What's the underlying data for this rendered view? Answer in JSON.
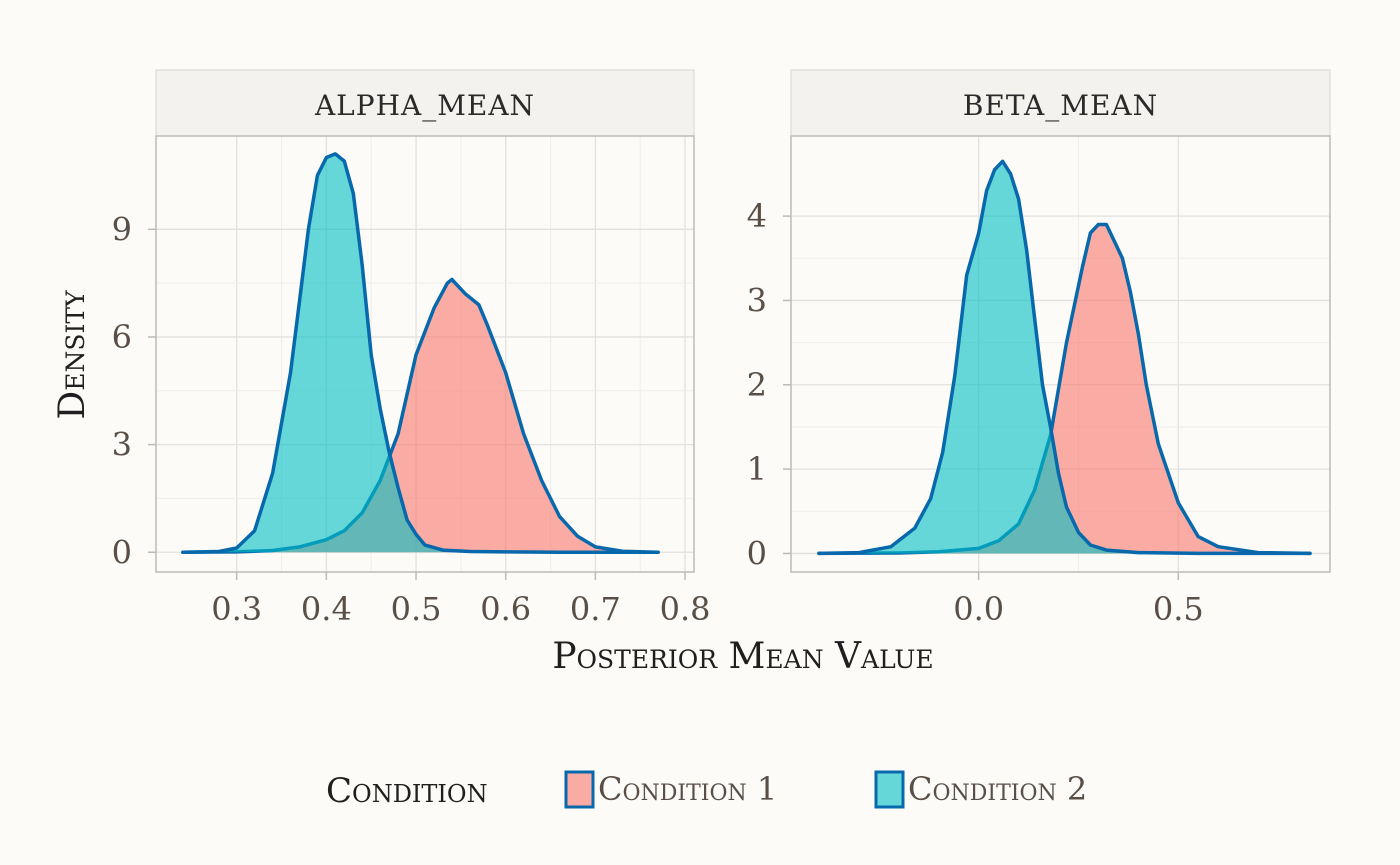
{
  "chart_data": {
    "type": "area",
    "xlabel": "Posterior Mean Value",
    "ylabel": "Density",
    "legend": {
      "title": "Condition",
      "position": "bottom",
      "entries": [
        {
          "label": "Condition 1",
          "fill": "#f8766d"
        },
        {
          "label": "Condition 2",
          "fill": "#00bfc4"
        }
      ]
    },
    "colors": {
      "outline": "#0868ac",
      "condition_1": "#f8766d",
      "condition_2": "#00bfc4"
    },
    "grid": true,
    "panels": [
      {
        "title": "ALPHA_MEAN",
        "xlim": [
          0.21,
          0.81
        ],
        "ylim": [
          -0.55,
          11.6
        ],
        "xticks": [
          0.3,
          0.4,
          0.5,
          0.6,
          0.7,
          0.8
        ],
        "xtick_labels": [
          "0.3",
          "0.4",
          "0.5",
          "0.6",
          "0.7",
          "0.8"
        ],
        "yticks": [
          0,
          3,
          6,
          9
        ],
        "ytick_labels": [
          "0",
          "3",
          "6",
          "9"
        ],
        "series": [
          {
            "name": "Condition 1",
            "x": [
              0.24,
              0.3,
              0.34,
              0.37,
              0.4,
              0.42,
              0.44,
              0.46,
              0.48,
              0.5,
              0.52,
              0.535,
              0.54,
              0.555,
              0.57,
              0.58,
              0.6,
              0.62,
              0.64,
              0.66,
              0.68,
              0.7,
              0.73,
              0.77
            ],
            "y": [
              0,
              0.01,
              0.05,
              0.15,
              0.35,
              0.6,
              1.1,
              2.0,
              3.3,
              5.5,
              6.8,
              7.5,
              7.6,
              7.2,
              6.9,
              6.3,
              5.0,
              3.3,
              2.0,
              1.0,
              0.45,
              0.15,
              0.03,
              0
            ]
          },
          {
            "name": "Condition 2",
            "x": [
              0.24,
              0.28,
              0.3,
              0.32,
              0.34,
              0.36,
              0.37,
              0.38,
              0.39,
              0.4,
              0.41,
              0.42,
              0.43,
              0.44,
              0.45,
              0.46,
              0.47,
              0.48,
              0.49,
              0.5,
              0.51,
              0.53,
              0.56,
              0.6,
              0.66,
              0.77
            ],
            "y": [
              0,
              0.02,
              0.12,
              0.6,
              2.2,
              5.0,
              7.0,
              9.0,
              10.5,
              11.0,
              11.1,
              10.9,
              10.0,
              8.0,
              5.5,
              4.0,
              2.8,
              1.8,
              0.9,
              0.5,
              0.2,
              0.06,
              0.02,
              0.01,
              0,
              0
            ]
          }
        ]
      },
      {
        "title": "BETA_MEAN",
        "xlim": [
          -0.47,
          0.88
        ],
        "ylim": [
          -0.22,
          4.95
        ],
        "xticks": [
          0.0,
          0.5
        ],
        "xtick_labels": [
          "0.0",
          "0.5"
        ],
        "yticks": [
          0,
          1,
          2,
          3,
          4
        ],
        "ytick_labels": [
          "0",
          "1",
          "2",
          "3",
          "4"
        ],
        "series": [
          {
            "name": "Condition 1",
            "x": [
              -0.4,
              -0.2,
              -0.1,
              0.0,
              0.05,
              0.1,
              0.14,
              0.18,
              0.2,
              0.22,
              0.24,
              0.26,
              0.28,
              0.3,
              0.32,
              0.34,
              0.36,
              0.38,
              0.4,
              0.42,
              0.45,
              0.5,
              0.55,
              0.6,
              0.7,
              0.83
            ],
            "y": [
              0,
              0.005,
              0.02,
              0.06,
              0.15,
              0.35,
              0.75,
              1.4,
              1.95,
              2.5,
              2.95,
              3.4,
              3.8,
              3.9,
              3.9,
              3.7,
              3.5,
              3.1,
              2.6,
              2.0,
              1.3,
              0.6,
              0.2,
              0.08,
              0.01,
              0
            ]
          },
          {
            "name": "Condition 2",
            "x": [
              -0.4,
              -0.3,
              -0.22,
              -0.16,
              -0.12,
              -0.09,
              -0.06,
              -0.03,
              0.0,
              0.02,
              0.04,
              0.06,
              0.08,
              0.1,
              0.12,
              0.14,
              0.16,
              0.18,
              0.2,
              0.22,
              0.25,
              0.28,
              0.32,
              0.4,
              0.55,
              0.83
            ],
            "y": [
              0,
              0.01,
              0.08,
              0.3,
              0.65,
              1.2,
              2.1,
              3.3,
              3.8,
              4.3,
              4.55,
              4.65,
              4.5,
              4.2,
              3.6,
              2.8,
              2.0,
              1.5,
              0.95,
              0.55,
              0.25,
              0.1,
              0.04,
              0.01,
              0,
              0
            ]
          }
        ]
      }
    ]
  }
}
